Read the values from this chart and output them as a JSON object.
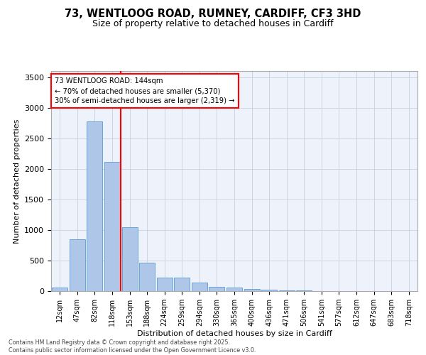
{
  "title_line1": "73, WENTLOOG ROAD, RUMNEY, CARDIFF, CF3 3HD",
  "title_line2": "Size of property relative to detached houses in Cardiff",
  "xlabel": "Distribution of detached houses by size in Cardiff",
  "ylabel": "Number of detached properties",
  "bar_labels": [
    "12sqm",
    "47sqm",
    "82sqm",
    "118sqm",
    "153sqm",
    "188sqm",
    "224sqm",
    "259sqm",
    "294sqm",
    "330sqm",
    "365sqm",
    "400sqm",
    "436sqm",
    "471sqm",
    "506sqm",
    "541sqm",
    "577sqm",
    "612sqm",
    "647sqm",
    "683sqm",
    "718sqm"
  ],
  "bar_values": [
    55,
    850,
    2780,
    2110,
    1040,
    460,
    225,
    225,
    135,
    65,
    55,
    35,
    20,
    15,
    10,
    5,
    2,
    2,
    2,
    1,
    1
  ],
  "bar_color": "#aec6e8",
  "bar_edgecolor": "#5b9bd5",
  "ylim": [
    0,
    3600
  ],
  "yticks": [
    0,
    500,
    1000,
    1500,
    2000,
    2500,
    3000,
    3500
  ],
  "property_bin_index": 3,
  "annotation_line1": "73 WENTLOOG ROAD: 144sqm",
  "annotation_line2": "← 70% of detached houses are smaller (5,370)",
  "annotation_line3": "30% of semi-detached houses are larger (2,319) →",
  "footer_line1": "Contains HM Land Registry data © Crown copyright and database right 2025.",
  "footer_line2": "Contains public sector information licensed under the Open Government Licence v3.0.",
  "background_color": "#eef2fb",
  "grid_color": "#c8d0e0"
}
